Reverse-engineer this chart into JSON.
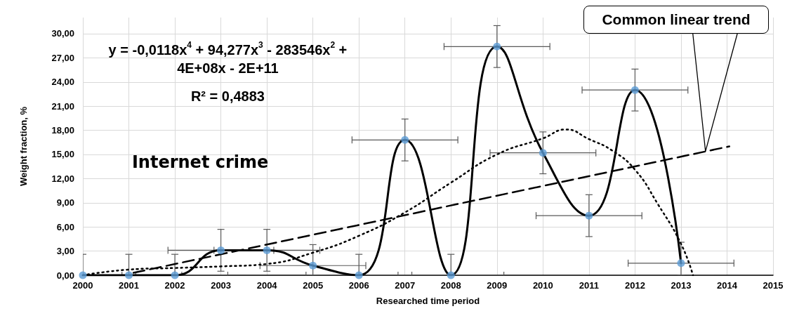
{
  "chart_data": {
    "type": "line",
    "xlabel": "Researched time period",
    "ylabel": "Weight fraction, %",
    "xlim": [
      2000,
      2015
    ],
    "xticks": [
      2000,
      2001,
      2002,
      2003,
      2004,
      2005,
      2006,
      2007,
      2008,
      2009,
      2010,
      2011,
      2012,
      2013,
      2014,
      2015
    ],
    "ylim": [
      0,
      32
    ],
    "yticks": [
      {
        "value": 0,
        "label": "0,00"
      },
      {
        "value": 3,
        "label": "3,00"
      },
      {
        "value": 6,
        "label": "6,00"
      },
      {
        "value": 9,
        "label": "9,00"
      },
      {
        "value": 12,
        "label": "12,00"
      },
      {
        "value": 15,
        "label": "15,00"
      },
      {
        "value": 18,
        "label": "18,00"
      },
      {
        "value": 21,
        "label": "21,00"
      },
      {
        "value": 24,
        "label": "24,00"
      },
      {
        "value": 27,
        "label": "27,00"
      },
      {
        "value": 30,
        "label": "30,00"
      }
    ],
    "grid": true,
    "x": [
      2000,
      2001,
      2002,
      2003,
      2004,
      2005,
      2006,
      2007,
      2008,
      2009,
      2010,
      2011,
      2012,
      2013
    ],
    "series": [
      {
        "color": "#000000",
        "marker": "none",
        "line_style": "solid",
        "values": [
          0,
          0,
          0,
          3.1,
          3.1,
          1.2,
          0,
          16.8,
          0,
          28.4,
          15.2,
          7.4,
          23.0,
          1.5
        ]
      },
      {
        "type": "scatter",
        "color": "#5b9bd5",
        "marker": "circle",
        "values": [
          0,
          0,
          0,
          3.1,
          3.1,
          1.2,
          0,
          16.8,
          0,
          28.4,
          15.2,
          7.4,
          23.0,
          1.5
        ],
        "errors": [
          [
            0,
            2.6
          ],
          [
            0,
            2.6
          ],
          [
            0,
            2.6
          ],
          2.6,
          2.6,
          [
            0,
            3.8
          ],
          [
            0,
            2.6
          ],
          2.6,
          [
            0,
            2.6
          ],
          2.6,
          2.6,
          2.6,
          2.6,
          [
            0,
            4.1
          ]
        ],
        "xerrors": [
          1.15,
          1.15,
          1.15,
          1.15,
          1.15,
          1.15,
          1.15,
          1.15,
          1.15,
          1.15,
          1.15,
          1.15,
          1.15,
          1.15
        ]
      },
      {
        "color": "#000000",
        "marker": "none",
        "line_style": "dotted",
        "x": [
          2000,
          2001,
          2002,
          2003,
          2004,
          2005,
          2006,
          2007,
          2008,
          2009,
          2010,
          2010.5,
          2011,
          2011.5,
          2012,
          2012.5,
          2013,
          2013.26
        ],
        "values": [
          0,
          0.7,
          0.9,
          1.1,
          1.4,
          2.8,
          4.9,
          7.8,
          11.5,
          15.0,
          17.0,
          18.1,
          16.9,
          15.5,
          13.1,
          8.8,
          3.9,
          0
        ]
      },
      {
        "color": "#000000",
        "marker": "none",
        "line_style": "dashed",
        "x": [
          2001.1,
          2014.05
        ],
        "values": [
          0.3,
          16.0
        ]
      }
    ],
    "annotations": [
      "y = -0,0118x$^{4}$ + 94,277x$^{3}$ - 283546x$^{2}$ + 4E+08x - 2E+11",
      "R² = 0,4883",
      "Internet crime",
      "Common linear trend"
    ]
  }
}
